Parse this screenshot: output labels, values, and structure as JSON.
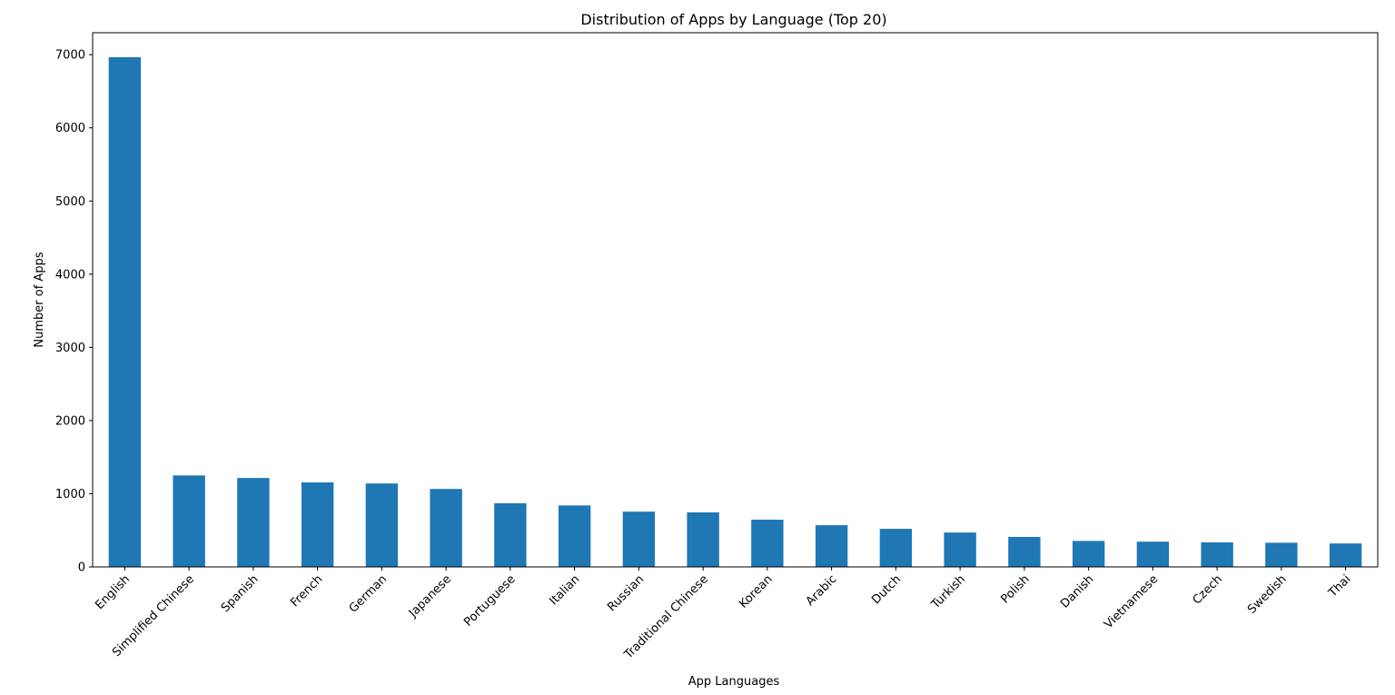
{
  "chart_data": {
    "type": "bar",
    "title": "Distribution of Apps by Language (Top 20)",
    "xlabel": "App Languages",
    "ylabel": "Number of Apps",
    "categories": [
      "English",
      "Simplified Chinese",
      "Spanish",
      "French",
      "German",
      "Japanese",
      "Portuguese",
      "Italian",
      "Russian",
      "Traditional Chinese",
      "Korean",
      "Arabic",
      "Dutch",
      "Turkish",
      "Polish",
      "Danish",
      "Vietnamese",
      "Czech",
      "Swedish",
      "Thai"
    ],
    "values": [
      6965,
      1250,
      1215,
      1155,
      1140,
      1065,
      870,
      840,
      755,
      745,
      645,
      570,
      520,
      470,
      410,
      355,
      345,
      335,
      330,
      320
    ],
    "yticks": [
      0,
      1000,
      2000,
      3000,
      4000,
      5000,
      6000,
      7000
    ],
    "ylim": [
      0,
      7300
    ],
    "bar_color": "#1f77b4",
    "grid": false,
    "legend": "none"
  }
}
